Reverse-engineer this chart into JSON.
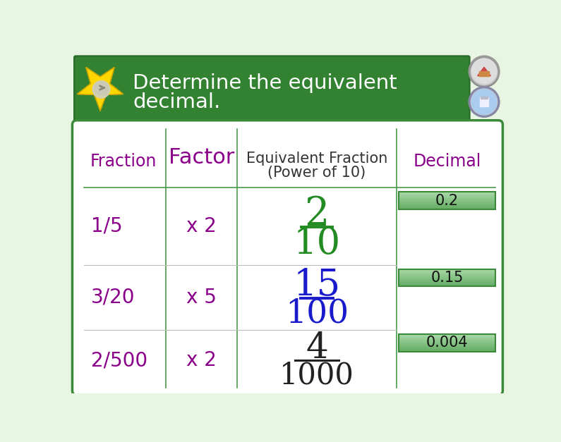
{
  "bg_color": "#e8f5e2",
  "header_bg_dark": "#2a6b2a",
  "header_bg_light": "#3a9a3a",
  "header_text": "Determine the equivalent\ndecimal.",
  "header_text_color": "#ffffff",
  "table_bg": "#ffffff",
  "table_border_color": "#3a8a3a",
  "col_header_purple": "#8b008b",
  "col_header_black": "#333333",
  "fractions": [
    "1/5",
    "3/20",
    "2/500"
  ],
  "factors": [
    "x 2",
    "x 5",
    "x 2"
  ],
  "fraction_color": "#8b008b",
  "factor_color": "#8b008b",
  "decimals": [
    "0.2",
    "0.15",
    "0.004"
  ],
  "decimal_box_color_top": "#a8d8a8",
  "decimal_box_color_bottom": "#60aa60",
  "decimal_box_border": "#3a8a3a",
  "decimal_font_color": "#111111",
  "green_color": "#228B22",
  "blue_color": "#1a1acd",
  "black_color": "#222222",
  "star_color": "#FFD700",
  "star_outline": "#c8a000",
  "divider_color": "#4a9a4a",
  "header_line_color": "#4a9a4a",
  "fig_w": 7.95,
  "fig_h": 6.27,
  "dpi": 100
}
